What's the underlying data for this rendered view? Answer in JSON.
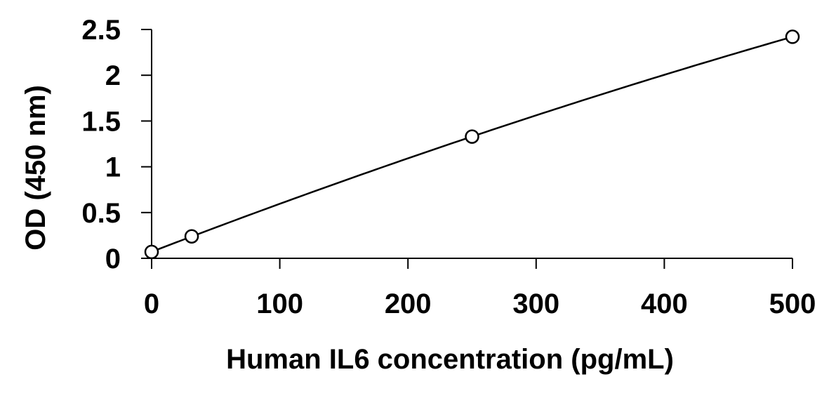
{
  "chart_data": {
    "type": "scatter",
    "title": "",
    "xlabel": "Human IL6 concentration (pg/mL)",
    "ylabel": "OD (450 nm)",
    "xlim": [
      0,
      500
    ],
    "ylim": [
      0,
      2.5
    ],
    "x_ticks": [
      "0",
      "100",
      "200",
      "300",
      "400",
      "500"
    ],
    "y_ticks": [
      "0",
      "0.5",
      "1",
      "1.5",
      "2",
      "2.5"
    ],
    "grid": false,
    "legend": "none",
    "marker": "open-circle",
    "trendline": "polynomial",
    "colors": {
      "line": "#000000",
      "marker": "#000000",
      "background": "#ffffff"
    },
    "series": [
      {
        "x": [
          0,
          31.25,
          250,
          500
        ],
        "y": [
          0.07,
          0.24,
          1.33,
          2.42
        ]
      }
    ]
  }
}
